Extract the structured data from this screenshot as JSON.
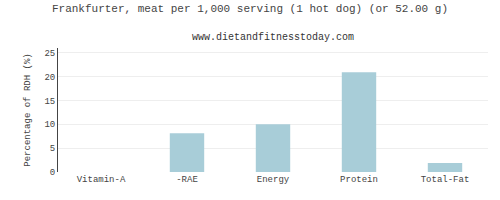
{
  "chart_data": {
    "type": "bar",
    "title": "Frankfurter, meat per 1,000 serving (1 hot dog) (or 52.00 g)",
    "subtitle": "www.dietandfitnesstoday.com",
    "ylabel": "Percentage of RDH (%)",
    "categories": [
      "Vitamin-A",
      "-RAE",
      "Energy",
      "Protein",
      "Total-Fat"
    ],
    "values": [
      0.0,
      8.1,
      10.0,
      20.9,
      1.9
    ],
    "color": "#a8cdd8",
    "ylim": [
      0,
      26
    ],
    "yticks": [
      0,
      5,
      10,
      15,
      20,
      25
    ],
    "grid": true
  }
}
